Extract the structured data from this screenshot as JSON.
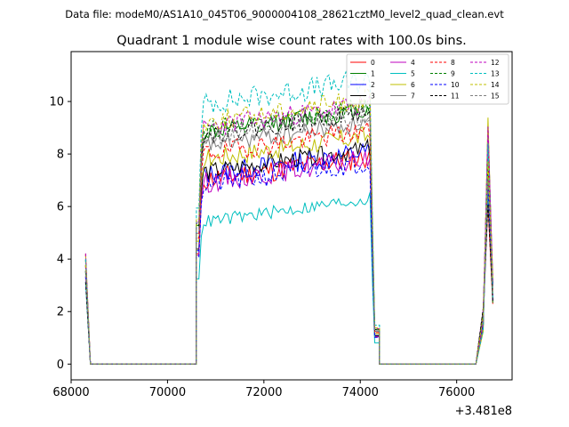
{
  "suptitle": "Data file: modeM0/AS1A10_045T06_9000004108_28621cztM0_level2_quad_clean.evt",
  "chart_data": {
    "type": "line",
    "title": "Quadrant 1 module wise count rates with 100.0s bins.",
    "xlabel": "",
    "ylabel": "",
    "offset_label": "+3.481e8",
    "xlim": [
      68000,
      77150
    ],
    "ylim": [
      -0.6,
      11.9
    ],
    "xticks": [
      68000,
      70000,
      72000,
      74000,
      76000
    ],
    "yticks": [
      0,
      2,
      4,
      6,
      8,
      10
    ],
    "grid": false,
    "legend_position": "top-right",
    "series": [
      {
        "name": "0",
        "color": "#ff0000",
        "dash": "solid",
        "level": 7.0,
        "jitter": 0.45,
        "seed": 11
      },
      {
        "name": "1",
        "color": "#008000",
        "dash": "solid",
        "level": 8.8,
        "jitter": 0.35,
        "seed": 12
      },
      {
        "name": "2",
        "color": "#0000ff",
        "dash": "solid",
        "level": 7.2,
        "jitter": 0.4,
        "seed": 13
      },
      {
        "name": "3",
        "color": "#000000",
        "dash": "solid",
        "level": 7.3,
        "jitter": 0.35,
        "seed": 14
      },
      {
        "name": "4",
        "color": "#bf00bf",
        "dash": "solid",
        "level": 6.9,
        "jitter": 0.4,
        "seed": 15
      },
      {
        "name": "5",
        "color": "#00bfbf",
        "dash": "solid",
        "level": 5.4,
        "jitter": 0.25,
        "seed": 16
      },
      {
        "name": "6",
        "color": "#bfbf00",
        "dash": "solid",
        "level": 7.8,
        "jitter": 0.4,
        "seed": 17
      },
      {
        "name": "7",
        "color": "#808080",
        "dash": "solid",
        "level": 8.3,
        "jitter": 0.35,
        "seed": 18
      },
      {
        "name": "8",
        "color": "#ff0000",
        "dash": "dashed",
        "level": 8.0,
        "jitter": 0.4,
        "seed": 19
      },
      {
        "name": "9",
        "color": "#008000",
        "dash": "dashed",
        "level": 8.9,
        "jitter": 0.35,
        "seed": 20
      },
      {
        "name": "10",
        "color": "#0000ff",
        "dash": "dashed",
        "level": 6.8,
        "jitter": 0.4,
        "seed": 21
      },
      {
        "name": "11",
        "color": "#000000",
        "dash": "dashed",
        "level": 8.7,
        "jitter": 0.35,
        "seed": 22
      },
      {
        "name": "12",
        "color": "#bf00bf",
        "dash": "dashed",
        "level": 9.0,
        "jitter": 0.4,
        "seed": 23
      },
      {
        "name": "13",
        "color": "#00bfbf",
        "dash": "dashed",
        "level": 9.9,
        "jitter": 0.45,
        "seed": 24
      },
      {
        "name": "14",
        "color": "#bfbf00",
        "dash": "dashed",
        "level": 9.2,
        "jitter": 0.4,
        "seed": 25
      },
      {
        "name": "15",
        "color": "#808080",
        "dash": "dashed",
        "level": 8.6,
        "jitter": 0.35,
        "seed": 26
      }
    ]
  }
}
